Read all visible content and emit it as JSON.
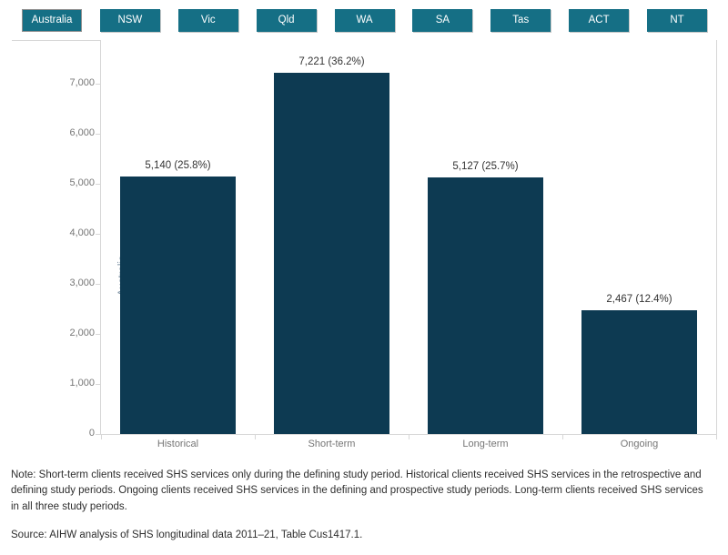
{
  "tabs": {
    "items": [
      {
        "label": "Australia",
        "selected": true
      },
      {
        "label": "NSW",
        "selected": false
      },
      {
        "label": "Vic",
        "selected": false
      },
      {
        "label": "Qld",
        "selected": false
      },
      {
        "label": "WA",
        "selected": false
      },
      {
        "label": "SA",
        "selected": false
      },
      {
        "label": "Tas",
        "selected": false
      },
      {
        "label": "ACT",
        "selected": false
      },
      {
        "label": "NT",
        "selected": false
      }
    ]
  },
  "chart_data": {
    "type": "bar",
    "row_label": "Australia",
    "ylabel": "Number of clients",
    "categories": [
      "Historical",
      "Short-term",
      "Long-term",
      "Ongoing"
    ],
    "values": [
      5140,
      7221,
      5127,
      2467
    ],
    "bar_labels": [
      "5,140 (25.8%)",
      "7,221 (36.2%)",
      "5,127 (25.7%)",
      "2,467 (12.4%)"
    ],
    "yticks": [
      0,
      1000,
      2000,
      3000,
      4000,
      5000,
      6000,
      7000
    ],
    "ytick_labels": [
      "0",
      "1,000",
      "2,000",
      "3,000",
      "4,000",
      "5,000",
      "6,000",
      "7,000"
    ],
    "ylim": [
      0,
      7870
    ],
    "grid": false,
    "legend": "none"
  },
  "colors": {
    "tab_teal": "#156f85",
    "bar_navy": "#0d3a52",
    "axis_line": "#d7d7d7",
    "tick_text": "#767676",
    "value_text": "#333333",
    "row_label_text": "#7f93a5",
    "ylabel_text": "#24323e"
  },
  "notes": {
    "note": "Note: Short-term clients received SHS services only during the defining study period. Historical clients received SHS services in the retrospective and defining study periods. Ongoing clients received SHS services in the defining and prospective study periods. Long-term clients received SHS services in all three study periods.",
    "source": "Source: AIHW analysis of SHS longitudinal data 2011–21, Table Cus1417.1."
  }
}
